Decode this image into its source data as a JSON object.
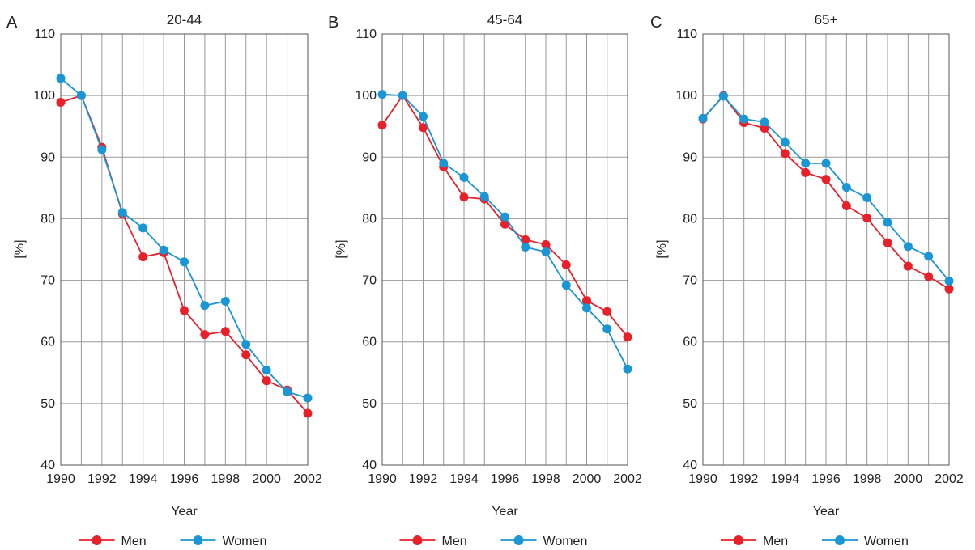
{
  "figure": {
    "panels": [
      "A",
      "B",
      "C"
    ]
  },
  "colors": {
    "men": "#e8202a",
    "women": "#1a96d4",
    "grid": "#9a9a9a"
  },
  "legend": {
    "men": "Men",
    "women": "Women",
    "placement": "bottom-center"
  },
  "chart_data": [
    {
      "type": "line",
      "panel": "A",
      "title": "20-44",
      "xlabel": "Year",
      "ylabel": "[%]",
      "xlim": [
        1990,
        2002
      ],
      "ylim": [
        40,
        110
      ],
      "xticks": [
        1990,
        1992,
        1994,
        1996,
        1998,
        2000,
        2002
      ],
      "yticks": [
        40,
        50,
        60,
        70,
        80,
        90,
        100,
        110
      ],
      "grid": true,
      "x": [
        1990,
        1991,
        1992,
        1993,
        1994,
        1995,
        1996,
        1997,
        1998,
        1999,
        2000,
        2001,
        2002
      ],
      "series": [
        {
          "name": "Men",
          "values": [
            98.9,
            100.0,
            91.6,
            80.8,
            73.8,
            74.5,
            65.1,
            61.2,
            61.7,
            57.9,
            53.7,
            52.2,
            48.4
          ]
        },
        {
          "name": "Women",
          "values": [
            102.8,
            100.0,
            91.2,
            81.0,
            78.5,
            74.9,
            73.0,
            65.9,
            66.6,
            59.6,
            55.4,
            51.9,
            50.9
          ]
        }
      ]
    },
    {
      "type": "line",
      "panel": "B",
      "title": "45-64",
      "xlabel": "Year",
      "ylabel": "[%]",
      "xlim": [
        1990,
        2002
      ],
      "ylim": [
        40,
        110
      ],
      "xticks": [
        1990,
        1992,
        1994,
        1996,
        1998,
        2000,
        2002
      ],
      "yticks": [
        40,
        50,
        60,
        70,
        80,
        90,
        100,
        110
      ],
      "grid": true,
      "x": [
        1990,
        1991,
        1992,
        1993,
        1994,
        1995,
        1996,
        1997,
        1998,
        1999,
        2000,
        2001,
        2002
      ],
      "series": [
        {
          "name": "Men",
          "values": [
            95.2,
            100.0,
            94.8,
            88.4,
            83.5,
            83.2,
            79.1,
            76.6,
            75.8,
            72.5,
            66.7,
            64.9,
            60.8
          ]
        },
        {
          "name": "Women",
          "values": [
            100.2,
            100.0,
            96.6,
            89.0,
            86.7,
            83.6,
            80.3,
            75.4,
            74.6,
            69.2,
            65.5,
            62.1,
            55.6
          ]
        }
      ]
    },
    {
      "type": "line",
      "panel": "C",
      "title": "65+",
      "xlabel": "Year",
      "ylabel": "[%]",
      "xlim": [
        1990,
        2002
      ],
      "ylim": [
        40,
        110
      ],
      "xticks": [
        1990,
        1992,
        1994,
        1996,
        1998,
        2000,
        2002
      ],
      "yticks": [
        40,
        50,
        60,
        70,
        80,
        90,
        100,
        110
      ],
      "grid": true,
      "x": [
        1990,
        1991,
        1992,
        1993,
        1994,
        1995,
        1996,
        1997,
        1998,
        1999,
        2000,
        2001,
        2002
      ],
      "series": [
        {
          "name": "Men",
          "values": [
            96.2,
            100.0,
            95.6,
            94.7,
            90.6,
            87.5,
            86.4,
            82.1,
            80.1,
            76.1,
            72.3,
            70.6,
            68.6
          ]
        },
        {
          "name": "Women",
          "values": [
            96.3,
            99.9,
            96.2,
            95.7,
            92.4,
            89.0,
            89.0,
            85.1,
            83.4,
            79.4,
            75.5,
            73.9,
            69.9
          ]
        }
      ]
    }
  ]
}
